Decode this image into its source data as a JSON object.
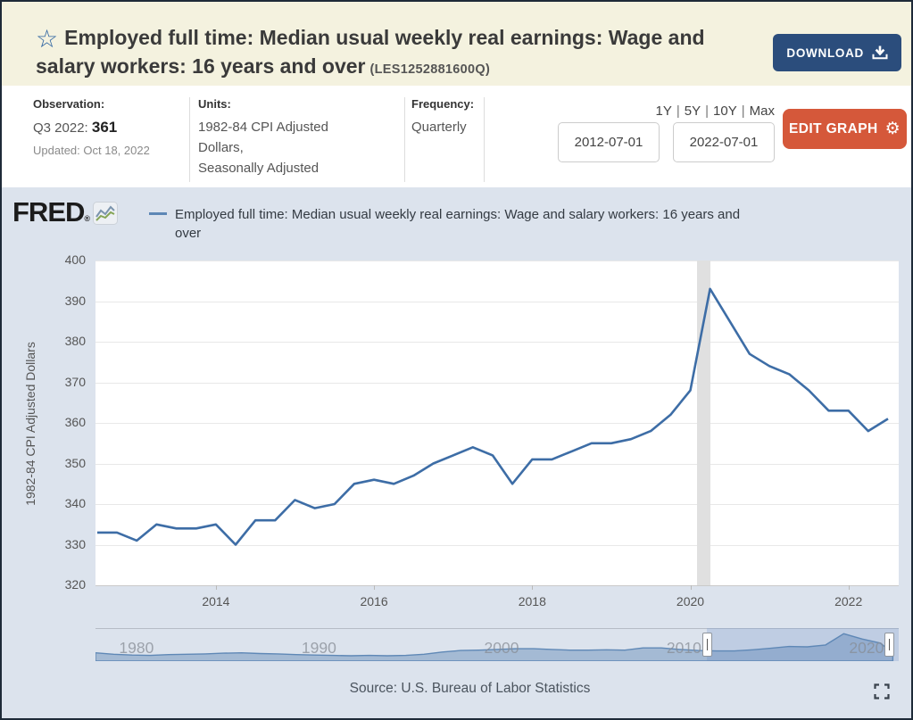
{
  "header": {
    "star_icon": "☆",
    "title": "Employed full time: Median usual weekly real earnings: Wage and salary workers: 16 years and over",
    "series_id": "(LES1252881600Q)",
    "download_label": "DOWNLOAD"
  },
  "info": {
    "observation": {
      "label": "Observation:",
      "period": "Q3 2022:",
      "value": "361",
      "updated": "Updated: Oct 18, 2022"
    },
    "units": {
      "label": "Units:",
      "value": "1982-84 CPI Adjusted Dollars,",
      "adjustment": "Seasonally Adjusted"
    },
    "frequency": {
      "label": "Frequency:",
      "value": "Quarterly"
    },
    "range_presets": [
      "1Y",
      "5Y",
      "10Y",
      "Max"
    ],
    "date_start": "2012-07-01",
    "date_end": "2022-07-01",
    "edit_graph_label": "EDIT GRAPH"
  },
  "chart_header": {
    "logo": "FRED",
    "logo_reg": "®",
    "legend_label": "Employed full time: Median usual weekly real earnings: Wage and salary workers: 16 years and over"
  },
  "footer": {
    "source": "Source: U.S. Bureau of Labor Statistics"
  },
  "colors": {
    "page_bg": "#dce3ed",
    "header_bg": "#f4f2df",
    "download_blue": "#2b4d7c",
    "edit_orange": "#d5583a",
    "line": "#3d6da6",
    "legend_dash": "#5d87b5",
    "gridline": "#e8e8e8",
    "axis_line": "#c9c9c9",
    "recession": "#e0e0e0",
    "tick_text": "#555555",
    "minimap_line": "#5f88b6",
    "minimap_fill": "rgba(95,136,182,0.45)",
    "minimap_selection": "rgba(126,156,204,0.30)"
  },
  "chart_data": {
    "type": "line",
    "title": "Employed full time: Median usual weekly real earnings: Wage and salary workers: 16 years and over",
    "series_id": "LES1252881600Q",
    "ylabel": "1982-84 CPI Adjusted Dollars",
    "ylim": [
      320,
      400
    ],
    "ytick_step": 10,
    "grid": true,
    "legend_position": "top",
    "x": [
      "2012-07-01",
      "2012-10-01",
      "2013-01-01",
      "2013-04-01",
      "2013-07-01",
      "2013-10-01",
      "2014-01-01",
      "2014-04-01",
      "2014-07-01",
      "2014-10-01",
      "2015-01-01",
      "2015-04-01",
      "2015-07-01",
      "2015-10-01",
      "2016-01-01",
      "2016-04-01",
      "2016-07-01",
      "2016-10-01",
      "2017-01-01",
      "2017-04-01",
      "2017-07-01",
      "2017-10-01",
      "2018-01-01",
      "2018-04-01",
      "2018-07-01",
      "2018-10-01",
      "2019-01-01",
      "2019-04-01",
      "2019-07-01",
      "2019-10-01",
      "2020-01-01",
      "2020-04-01",
      "2020-07-01",
      "2020-10-01",
      "2021-01-01",
      "2021-04-01",
      "2021-07-01",
      "2021-10-01",
      "2022-01-01",
      "2022-04-01",
      "2022-07-01"
    ],
    "values": [
      333,
      333,
      331,
      335,
      334,
      334,
      335,
      330,
      336,
      336,
      341,
      339,
      340,
      345,
      346,
      345,
      347,
      350,
      352,
      354,
      352,
      345,
      351,
      351,
      353,
      355,
      355,
      356,
      358,
      362,
      368,
      393,
      385,
      377,
      374,
      372,
      368,
      363,
      363,
      358,
      361
    ],
    "xtick_years": [
      "2014",
      "2016",
      "2018",
      "2020",
      "2022"
    ],
    "recession_band": {
      "start": "2020-02-01",
      "end": "2020-04-01"
    },
    "minimap": {
      "years": [
        1979,
        1980,
        1981,
        1982,
        1983,
        1984,
        1985,
        1986,
        1987,
        1988,
        1989,
        1990,
        1991,
        1992,
        1993,
        1994,
        1995,
        1996,
        1997,
        1998,
        1999,
        2000,
        2001,
        2002,
        2003,
        2004,
        2005,
        2006,
        2007,
        2008,
        2009,
        2010,
        2011,
        2012,
        2013,
        2014,
        2015,
        2016,
        2017,
        2018,
        2019,
        2020,
        2021,
        2022
      ],
      "values": [
        334,
        330,
        328,
        327,
        329,
        330,
        331,
        333,
        334,
        332,
        331,
        329,
        328,
        327,
        326,
        327,
        326,
        327,
        330,
        336,
        340,
        341,
        343,
        345,
        345,
        343,
        341,
        341,
        342,
        341,
        347,
        347,
        343,
        340,
        339,
        339,
        342,
        346,
        351,
        350,
        355,
        385,
        371,
        360
      ],
      "decade_labels": [
        "1980",
        "1990",
        "2000",
        "2010",
        "2020"
      ],
      "window_start": "2012-07-01",
      "window_end": "2022-07-01"
    }
  }
}
